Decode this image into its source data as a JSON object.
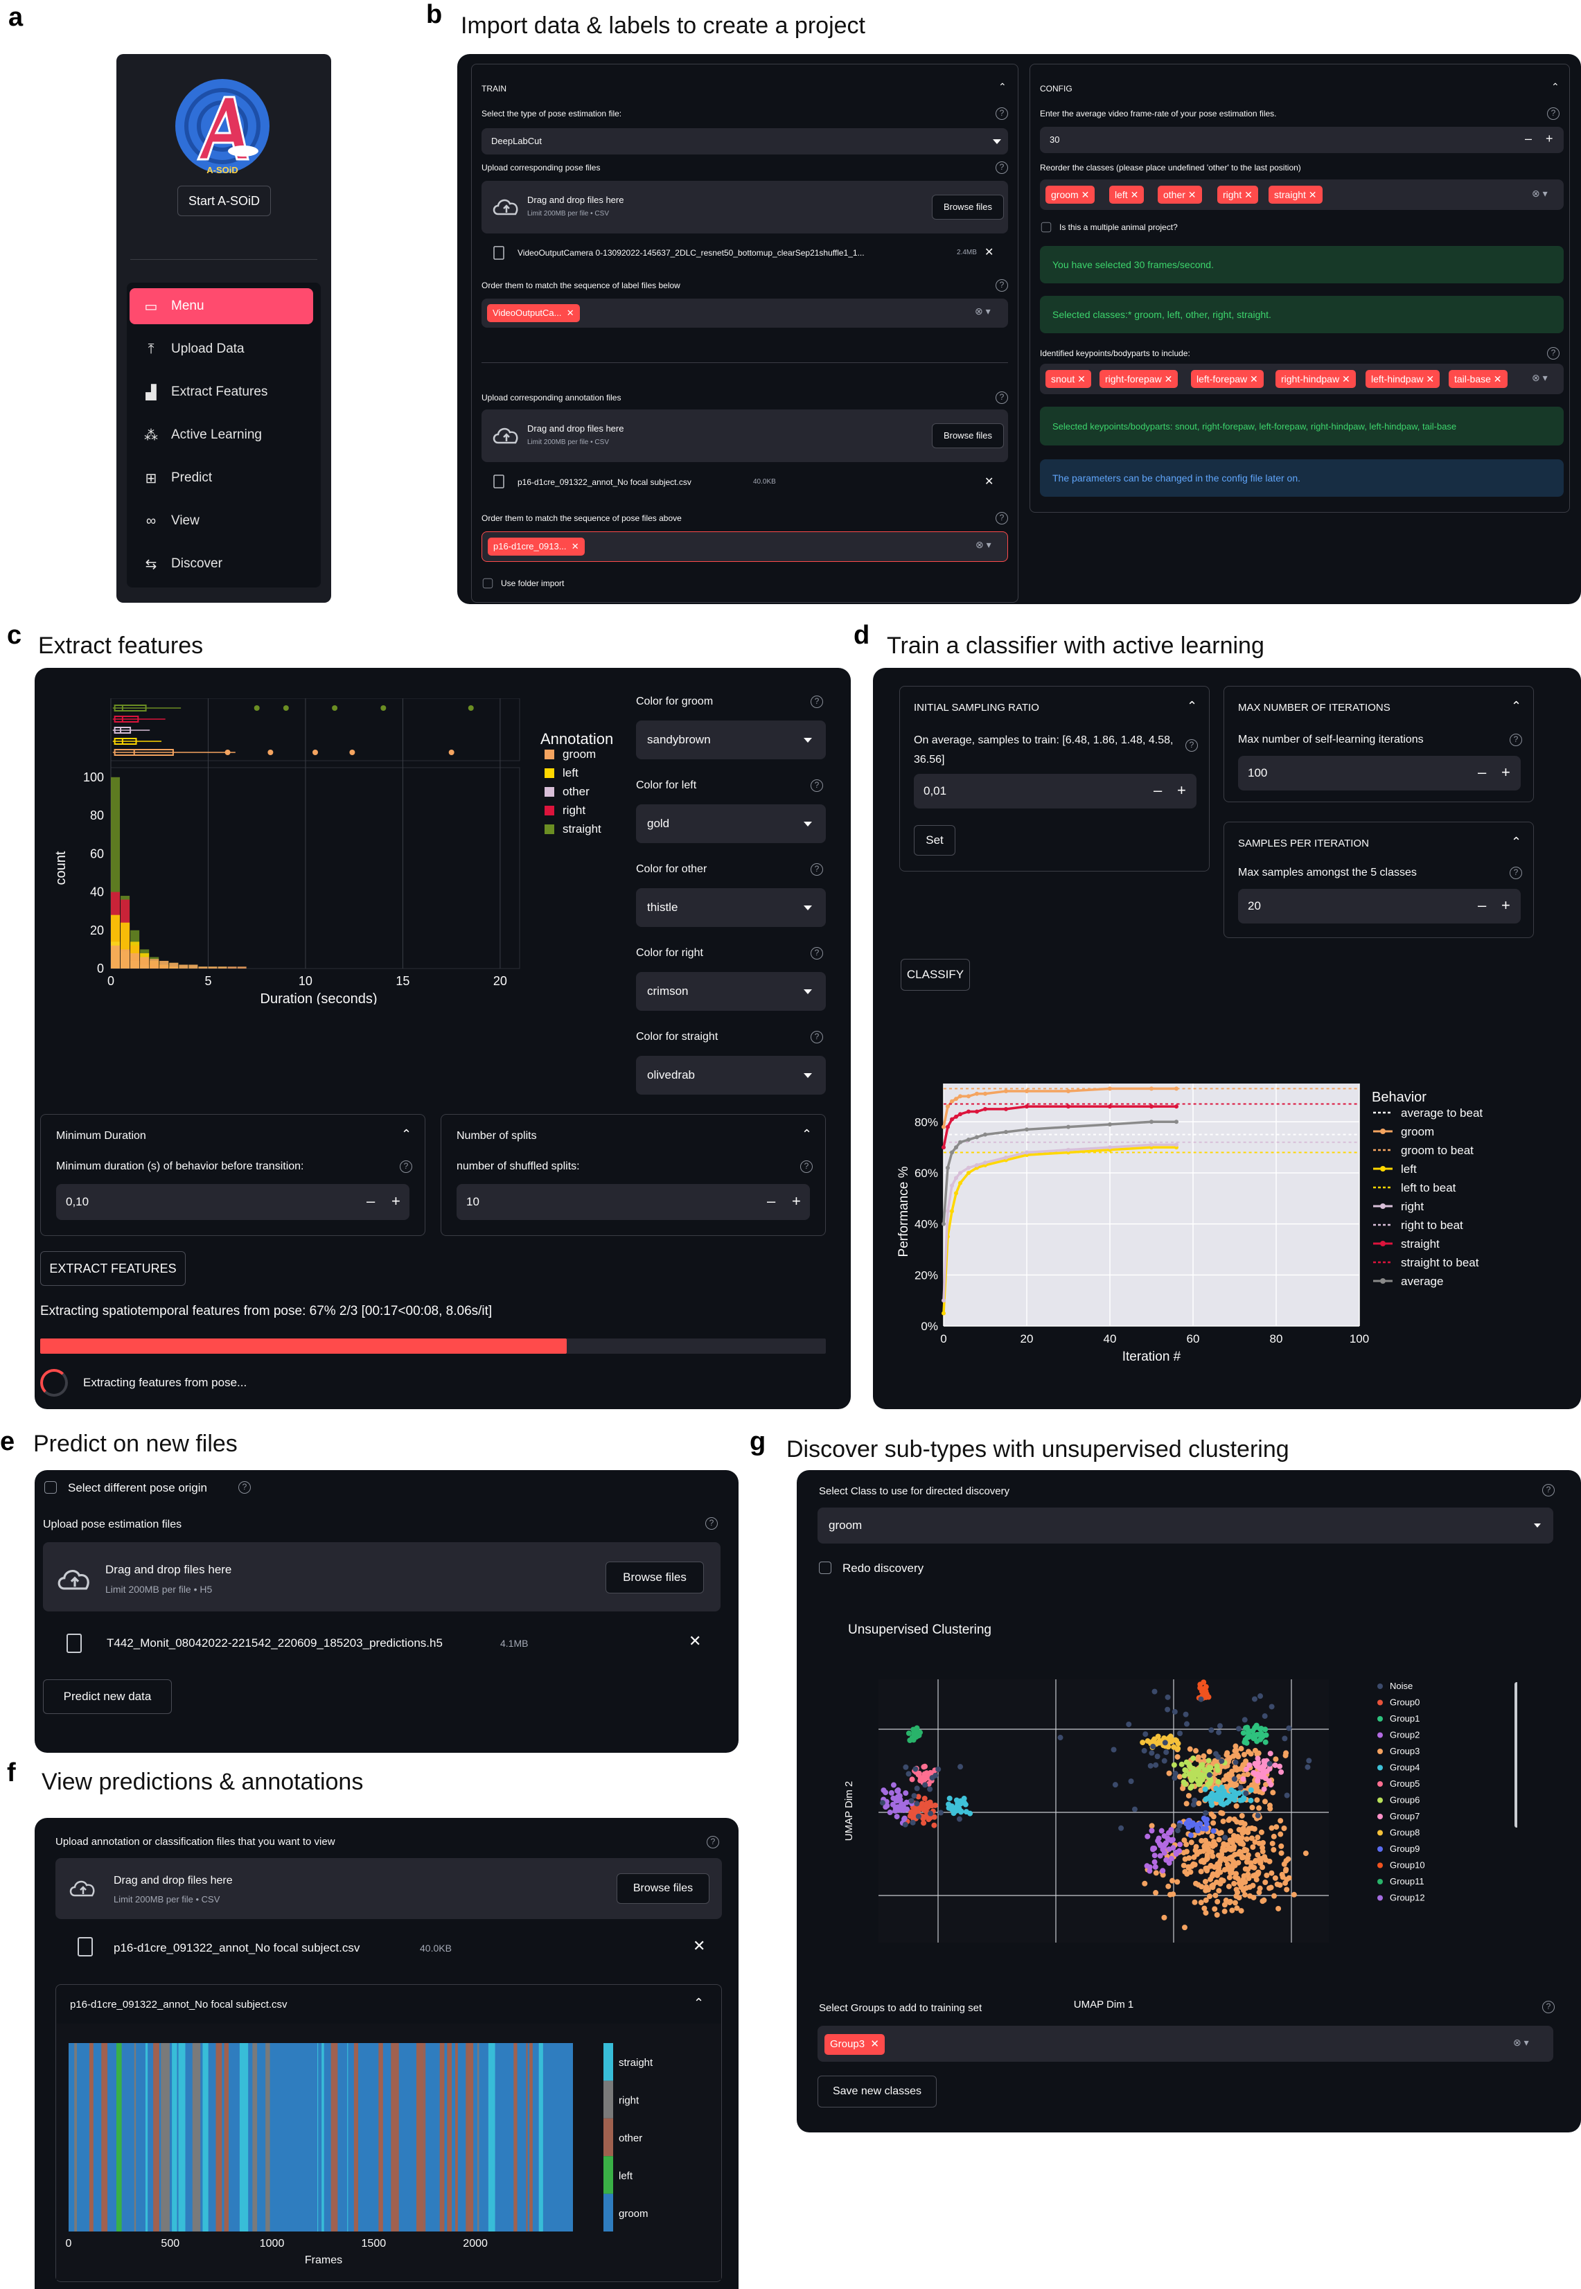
{
  "panels": {
    "a": {
      "letter": "a"
    },
    "b": {
      "letter": "b",
      "title": "Import data & labels to create a project"
    },
    "c": {
      "letter": "c",
      "title": "Extract features"
    },
    "d": {
      "letter": "d",
      "title": "Train a classifier with active learning"
    },
    "e": {
      "letter": "e",
      "title": "Predict on new files"
    },
    "f": {
      "letter": "f",
      "title": "View predictions & annotations"
    },
    "g": {
      "letter": "g",
      "title": "Discover sub-types with unsupervised clustering"
    }
  },
  "sidebar": {
    "logo_text": "A-SOiD",
    "start_button": "Start A-SOiD",
    "items": [
      {
        "label": "Menu",
        "icon": "menu-icon"
      },
      {
        "label": "Upload Data",
        "icon": "upload-icon"
      },
      {
        "label": "Extract Features",
        "icon": "bar-chart-icon"
      },
      {
        "label": "Active Learning",
        "icon": "network-icon"
      },
      {
        "label": "Predict",
        "icon": "file-plus-icon"
      },
      {
        "label": "View",
        "icon": "binoculars-icon"
      },
      {
        "label": "Discover",
        "icon": "signpost-icon"
      }
    ]
  },
  "train": {
    "header": "TRAIN",
    "pose_type_label": "Select the type of pose estimation file:",
    "pose_type_value": "DeepLabCut",
    "upload_pose_label": "Upload corresponding pose files",
    "drag_drop": "Drag and drop files here",
    "limit_csv": "Limit 200MB per file • CSV",
    "browse": "Browse files",
    "pose_file_name": "VideoOutputCamera 0-13092022-145637_2DLC_resnet50_bottomup_clearSep21shuffle1_1...",
    "pose_file_size": "2.4MB",
    "order_label_files": "Order them to match the sequence of label files below",
    "order_label_chip": "VideoOutputCa...",
    "upload_annot_label": "Upload corresponding annotation files",
    "annot_file_name": "p16-d1cre_091322_annot_No focal subject.csv",
    "annot_file_size": "40.0KB",
    "order_pose_files": "Order them to match the sequence of pose files above",
    "order_pose_chip": "p16-d1cre_0913...",
    "use_folder": "Use folder import"
  },
  "config": {
    "header": "CONFIG",
    "fps_label": "Enter the average video frame-rate of your pose estimation files.",
    "fps_value": "30",
    "reorder_label": "Reorder the classes (please place undefined 'other' to the last position)",
    "classes": [
      "groom",
      "left",
      "other",
      "right",
      "straight"
    ],
    "multi_animal": "Is this a multiple animal project?",
    "msg_fps": "You have selected 30 frames/second.",
    "msg_classes": "Selected classes:* groom, left, other, right, straight.",
    "keypoints_label": "Identified keypoints/bodyparts to include:",
    "keypoints": [
      "snout",
      "right-forepaw",
      "left-forepaw",
      "right-hindpaw",
      "left-hindpaw",
      "tail-base"
    ],
    "msg_keypoints": "Selected keypoints/bodyparts: snout, right-forepaw, left-forepaw, right-hindpaw, left-hindpaw, tail-base",
    "msg_info": "The parameters can be changed in the config file later on."
  },
  "extract": {
    "legend_title": "Annotation",
    "colors": [
      {
        "label": "Color for groom",
        "value": "sandybrown",
        "hex": "#f4a460"
      },
      {
        "label": "Color for left",
        "value": "gold",
        "hex": "#ffd700"
      },
      {
        "label": "Color for other",
        "value": "thistle",
        "hex": "#d8bfd8"
      },
      {
        "label": "Color for right",
        "value": "crimson",
        "hex": "#dc143c"
      },
      {
        "label": "Color for straight",
        "value": "olivedrab",
        "hex": "#6b8e23"
      }
    ],
    "min_dur_header": "Minimum Duration",
    "min_dur_label": "Minimum duration (s) of behavior before transition:",
    "min_dur_value": "0,10",
    "splits_header": "Number of splits",
    "splits_label": "number of shuffled splits:",
    "splits_value": "10",
    "extract_btn": "EXTRACT FEATURES",
    "progress_text": "Extracting spatiotemporal features from pose: 67% 2/3 [00:17<00:08, 8.06s/it]",
    "progress": 0.67,
    "spinner_text": "Extracting features from pose..."
  },
  "hist_chart": {
    "chart_data": {
      "type": "bar",
      "xlabel": "Duration (seconds)",
      "ylabel": "count",
      "xlim": [
        0,
        21
      ],
      "ylim": [
        0,
        105
      ],
      "x_ticks": [
        "0",
        "5",
        "10",
        "15",
        "20"
      ],
      "y_ticks": [
        "0",
        "20",
        "40",
        "60",
        "80",
        "100"
      ],
      "bin_width": 0.5,
      "series": [
        {
          "name": "straight",
          "values": [
            100,
            38,
            20,
            10,
            6,
            4,
            3,
            2,
            2,
            1,
            1,
            1
          ]
        },
        {
          "name": "right",
          "values": [
            40,
            36,
            12,
            5,
            2,
            1
          ]
        },
        {
          "name": "other",
          "values": [
            14,
            9,
            4,
            2
          ]
        },
        {
          "name": "left",
          "values": [
            28,
            24,
            14,
            8,
            4,
            2,
            1
          ]
        },
        {
          "name": "groom",
          "values": [
            12,
            10,
            8,
            6,
            5,
            4,
            3,
            2,
            2,
            1,
            1,
            1,
            1,
            1
          ]
        }
      ]
    }
  },
  "active": {
    "isr_header": "INITIAL SAMPLING RATIO",
    "isr_label": "On average, samples to train: [6.48, 1.86, 1.48, 4.58, 36.56]",
    "isr_value": "0,01",
    "set_btn": "Set",
    "max_iter_header": "MAX NUMBER OF ITERATIONS",
    "max_iter_label": "Max number of self-learning iterations",
    "max_iter_value": "100",
    "spi_header": "SAMPLES PER ITERATION",
    "spi_label": "Max samples amongst the 5 classes",
    "spi_value": "20",
    "classify_btn": "CLASSIFY"
  },
  "perf_chart": {
    "chart_data": {
      "type": "line",
      "xlabel": "Iteration #",
      "ylabel": "Performance %",
      "legend_title": "Behavior",
      "xlim": [
        0,
        100
      ],
      "ylim": [
        0,
        0.95
      ],
      "x_ticks": [
        "0",
        "20",
        "40",
        "60",
        "80",
        "100"
      ],
      "y_ticks": [
        "0%",
        "20%",
        "40%",
        "60%",
        "80%"
      ],
      "x": [
        0,
        1,
        2,
        3,
        4,
        6,
        8,
        10,
        15,
        20,
        30,
        40,
        50,
        56
      ],
      "series": [
        {
          "name": "average to beat",
          "beat": 0.75,
          "color": "#ffffff"
        },
        {
          "name": "groom",
          "values": [
            0.78,
            0.86,
            0.88,
            0.89,
            0.9,
            0.9,
            0.91,
            0.91,
            0.92,
            0.92,
            0.92,
            0.93,
            0.93,
            0.93
          ],
          "color": "#f4a460"
        },
        {
          "name": "groom to beat",
          "beat": 0.93,
          "color": "#f4a460"
        },
        {
          "name": "left",
          "values": [
            0.05,
            0.35,
            0.45,
            0.52,
            0.56,
            0.6,
            0.62,
            0.63,
            0.65,
            0.67,
            0.68,
            0.69,
            0.7,
            0.7
          ],
          "color": "#ffd700"
        },
        {
          "name": "left to beat",
          "beat": 0.68,
          "color": "#ffd700"
        },
        {
          "name": "right",
          "values": [
            0.1,
            0.45,
            0.55,
            0.58,
            0.6,
            0.62,
            0.63,
            0.64,
            0.66,
            0.68,
            0.69,
            0.7,
            0.71,
            0.71
          ],
          "color": "#d8bfd8"
        },
        {
          "name": "right to beat",
          "beat": 0.72,
          "color": "#d8bfd8"
        },
        {
          "name": "straight",
          "values": [
            0.7,
            0.78,
            0.81,
            0.82,
            0.83,
            0.84,
            0.84,
            0.85,
            0.85,
            0.86,
            0.86,
            0.86,
            0.86,
            0.86
          ],
          "color": "#dc143c"
        },
        {
          "name": "straight to beat",
          "beat": 0.87,
          "color": "#dc143c"
        },
        {
          "name": "average",
          "values": [
            0.4,
            0.62,
            0.68,
            0.7,
            0.72,
            0.73,
            0.74,
            0.75,
            0.76,
            0.77,
            0.78,
            0.79,
            0.8,
            0.8
          ],
          "color": "#8a8a8a"
        }
      ]
    }
  },
  "predict": {
    "diff_pose": "Select different pose origin",
    "upload_label": "Upload pose estimation files",
    "drag_drop": "Drag and drop files here",
    "limit_h5": "Limit 200MB per file • H5",
    "browse": "Browse files",
    "file_name": "T442_Monit_08042022-221542_220609_185203_predictions.h5",
    "file_size": "4.1MB",
    "predict_btn": "Predict new data"
  },
  "view": {
    "upload_label": "Upload annotation or classification files that you want to view",
    "drag_drop": "Drag and drop files here",
    "limit_csv": "Limit 200MB per file • CSV",
    "browse": "Browse files",
    "file_name": "p16-d1cre_091322_annot_No focal subject.csv",
    "file_size": "40.0KB",
    "expander_title": "p16-d1cre_091322_annot_No focal subject.csv"
  },
  "ethogram": {
    "chart_data": {
      "type": "heatmap",
      "xlabel": "Frames",
      "xlim": [
        0,
        2480
      ],
      "x_ticks": [
        "0",
        "500",
        "1000",
        "1500",
        "2000"
      ],
      "colorbar": [
        {
          "label": "straight",
          "color": "#38bdd8"
        },
        {
          "label": "right",
          "color": "#7a7a7a"
        },
        {
          "label": "other",
          "color": "#a0614f"
        },
        {
          "label": "left",
          "color": "#3ab046"
        },
        {
          "label": "groom",
          "color": "#2f7dbf"
        }
      ]
    }
  },
  "discover": {
    "class_label": "Select Class to use for directed discovery",
    "class_value": "groom",
    "redo": "Redo discovery",
    "plot_title": "Unsupervised Clustering",
    "groups_label": "Select Groups to add to training set",
    "group_chip": "Group3",
    "save_btn": "Save new classes"
  },
  "umap": {
    "chart_data": {
      "type": "scatter",
      "xlabel": "UMAP Dim 1",
      "ylabel": "UMAP Dim 2",
      "legend": [
        {
          "name": "Noise",
          "color": "#3b4a6b"
        },
        {
          "name": "Group0",
          "color": "#e8533b"
        },
        {
          "name": "Group1",
          "color": "#2ec27e"
        },
        {
          "name": "Group2",
          "color": "#b36ae2"
        },
        {
          "name": "Group3",
          "color": "#f4a260"
        },
        {
          "name": "Group4",
          "color": "#3fc1d8"
        },
        {
          "name": "Group5",
          "color": "#ff6f91"
        },
        {
          "name": "Group6",
          "color": "#b8e05a"
        },
        {
          "name": "Group7",
          "color": "#ff90c8"
        },
        {
          "name": "Group8",
          "color": "#f5c13a"
        },
        {
          "name": "Group9",
          "color": "#5a6cf0"
        },
        {
          "name": "Group10",
          "color": "#f0531f"
        },
        {
          "name": "Group11",
          "color": "#29b36a"
        },
        {
          "name": "Group12",
          "color": "#a46ce0"
        }
      ]
    }
  }
}
